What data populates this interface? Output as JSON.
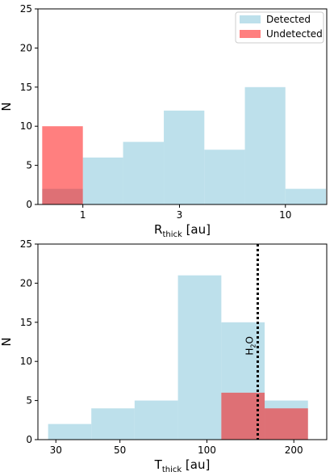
{
  "chart_data": [
    {
      "type": "bar",
      "xscale": "log",
      "xlabel_main": "R",
      "xlabel_sub": "thick",
      "xlabel_unit": " [au]",
      "ylabel": "N",
      "xlim": [
        0.6,
        16
      ],
      "ylim": [
        0,
        25
      ],
      "xticks": [
        1,
        3,
        10
      ],
      "xtick_labels": [
        "1",
        "3",
        "10"
      ],
      "yticks": [
        0,
        5,
        10,
        15,
        20,
        25
      ],
      "ytick_labels": [
        "0",
        "5",
        "10",
        "15",
        "20",
        "25"
      ],
      "legend": {
        "placement": "top-right",
        "entries": [
          "Detected",
          "Undetected"
        ]
      },
      "series": [
        {
          "name": "Detected",
          "color": "#add8e6",
          "bins": [
            {
              "x0": 0.63,
              "x1": 1.0,
              "value": 2
            },
            {
              "x0": 1.0,
              "x1": 1.58,
              "value": 6
            },
            {
              "x0": 1.58,
              "x1": 2.51,
              "value": 8
            },
            {
              "x0": 2.51,
              "x1": 3.98,
              "value": 12
            },
            {
              "x0": 3.98,
              "x1": 6.31,
              "value": 7
            },
            {
              "x0": 6.31,
              "x1": 10.0,
              "value": 15
            },
            {
              "x0": 10.0,
              "x1": 15.85,
              "value": 2
            }
          ]
        },
        {
          "name": "Undetected",
          "color": "#ff0000",
          "bins": [
            {
              "x0": 0.63,
              "x1": 1.0,
              "value": 10
            }
          ]
        }
      ]
    },
    {
      "type": "bar",
      "xscale": "log",
      "xlabel_main": "T",
      "xlabel_sub": "thick",
      "xlabel_unit": " [au]",
      "ylabel": "N",
      "xlim": [
        26,
        260
      ],
      "ylim": [
        0,
        25
      ],
      "xticks": [
        30,
        50,
        100,
        200
      ],
      "xtick_labels": [
        "30",
        "50",
        "100",
        "200"
      ],
      "yticks": [
        0,
        5,
        10,
        15,
        20,
        25
      ],
      "ytick_labels": [
        "0",
        "5",
        "10",
        "15",
        "20",
        "25"
      ],
      "annotation": {
        "label_main": "H",
        "label_sub": "2",
        "label_tail": "O",
        "x": 150
      },
      "series": [
        {
          "name": "Detected",
          "color": "#add8e6",
          "bins": [
            {
              "x0": 28.2,
              "x1": 39.8,
              "value": 2
            },
            {
              "x0": 39.8,
              "x1": 56.2,
              "value": 4
            },
            {
              "x0": 56.2,
              "x1": 79.4,
              "value": 5
            },
            {
              "x0": 79.4,
              "x1": 112.2,
              "value": 21
            },
            {
              "x0": 112.2,
              "x1": 158.5,
              "value": 15
            },
            {
              "x0": 158.5,
              "x1": 223.9,
              "value": 5
            }
          ]
        },
        {
          "name": "Undetected",
          "color": "#ff0000",
          "bins": [
            {
              "x0": 112.2,
              "x1": 158.5,
              "value": 6
            },
            {
              "x0": 158.5,
              "x1": 223.9,
              "value": 4
            }
          ]
        }
      ]
    }
  ]
}
